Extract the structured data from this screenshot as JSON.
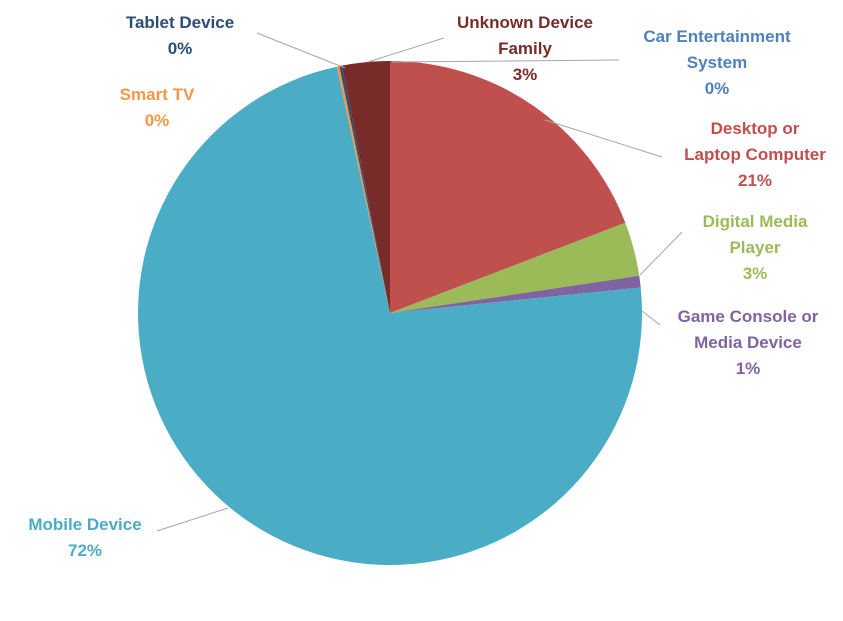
{
  "chart_data": {
    "type": "pie",
    "start_category": "Unknown Device Family",
    "direction": "clockwise",
    "slices": [
      {
        "name": "Car Entertainment System",
        "label_lines": [
          "Car Entertainment",
          "System"
        ],
        "value": 0,
        "value_label": "0%",
        "color": "#4f81bd"
      },
      {
        "name": "Desktop or Laptop Computer",
        "label_lines": [
          "Desktop or",
          "Laptop Computer"
        ],
        "value": 21,
        "value_label": "21%",
        "color": "#c0504d"
      },
      {
        "name": "Digital Media Player",
        "label_lines": [
          "Digital Media",
          "Player"
        ],
        "value": 3,
        "value_label": "3%",
        "color": "#9bbb59"
      },
      {
        "name": "Game Console or Media Device",
        "label_lines": [
          "Game Console or",
          "Media Device"
        ],
        "value": 1,
        "value_label": "1%",
        "color": "#8064a2"
      },
      {
        "name": "Mobile Device",
        "label_lines": [
          "Mobile Device"
        ],
        "value": 72,
        "value_label": "72%",
        "color": "#4bacc6"
      },
      {
        "name": "Smart TV",
        "label_lines": [
          "Smart TV"
        ],
        "value": 0,
        "value_label": "0%",
        "color": "#f79646"
      },
      {
        "name": "Tablet Device",
        "label_lines": [
          "Tablet Device"
        ],
        "value": 0,
        "value_label": "0%",
        "color": "#2c4d75"
      },
      {
        "name": "Unknown Device Family",
        "label_lines": [
          "Unknown Device",
          "Family"
        ],
        "value": 3,
        "value_label": "3%",
        "color": "#772c2a"
      }
    ],
    "legend": "none",
    "data_labels": "outside with leader lines"
  }
}
